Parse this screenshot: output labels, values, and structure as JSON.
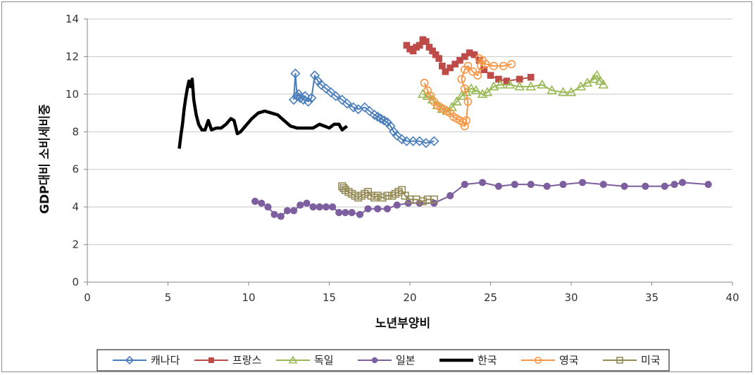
{
  "chart_data": {
    "type": "scatter",
    "xlabel": "노년부양비",
    "ylabel": "GDP대비 소비세비중",
    "xlim": [
      0,
      40
    ],
    "ylim": [
      0,
      14
    ],
    "xticks": [
      "0",
      "5",
      "10",
      "15",
      "20",
      "25",
      "30",
      "35",
      "40"
    ],
    "yticks": [
      "0",
      "2",
      "4",
      "6",
      "8",
      "10",
      "12",
      "14"
    ],
    "grid": "horizontal",
    "legend": "bottom",
    "series": [
      {
        "name": "캐나다",
        "color": "#4a7ebb",
        "marker": "diamond",
        "line": true,
        "points": [
          [
            12.8,
            9.7
          ],
          [
            12.9,
            11.1
          ],
          [
            13.0,
            9.9
          ],
          [
            13.1,
            10.0
          ],
          [
            13.2,
            9.8
          ],
          [
            13.4,
            9.7
          ],
          [
            13.5,
            9.9
          ],
          [
            13.7,
            9.6
          ],
          [
            13.9,
            9.8
          ],
          [
            14.1,
            11.0
          ],
          [
            14.3,
            10.7
          ],
          [
            14.5,
            10.5
          ],
          [
            14.8,
            10.3
          ],
          [
            15.1,
            10.1
          ],
          [
            15.4,
            9.9
          ],
          [
            15.8,
            9.7
          ],
          [
            16.1,
            9.5
          ],
          [
            16.5,
            9.3
          ],
          [
            16.8,
            9.2
          ],
          [
            17.2,
            9.3
          ],
          [
            17.5,
            9.1
          ],
          [
            17.8,
            8.9
          ],
          [
            18.0,
            8.8
          ],
          [
            18.2,
            8.7
          ],
          [
            18.4,
            8.6
          ],
          [
            18.6,
            8.5
          ],
          [
            18.8,
            8.3
          ],
          [
            19.0,
            8.0
          ],
          [
            19.2,
            7.8
          ],
          [
            19.5,
            7.6
          ],
          [
            19.8,
            7.5
          ],
          [
            20.2,
            7.5
          ],
          [
            20.6,
            7.5
          ],
          [
            21.0,
            7.4
          ],
          [
            21.5,
            7.5
          ]
        ]
      },
      {
        "name": "프랑스",
        "color": "#be4b48",
        "marker": "square",
        "line": true,
        "points": [
          [
            19.8,
            12.6
          ],
          [
            20.0,
            12.4
          ],
          [
            20.2,
            12.3
          ],
          [
            20.4,
            12.5
          ],
          [
            20.6,
            12.6
          ],
          [
            20.8,
            12.9
          ],
          [
            21.0,
            12.8
          ],
          [
            21.2,
            12.5
          ],
          [
            21.4,
            12.3
          ],
          [
            21.6,
            12.1
          ],
          [
            21.8,
            11.9
          ],
          [
            22.0,
            11.5
          ],
          [
            22.2,
            11.2
          ],
          [
            22.5,
            11.4
          ],
          [
            22.8,
            11.6
          ],
          [
            23.1,
            11.8
          ],
          [
            23.4,
            12.0
          ],
          [
            23.7,
            12.2
          ],
          [
            24.0,
            12.1
          ],
          [
            24.3,
            11.8
          ],
          [
            24.6,
            11.3
          ],
          [
            25.0,
            11.0
          ],
          [
            25.5,
            10.8
          ],
          [
            26.0,
            10.7
          ],
          [
            26.8,
            10.8
          ],
          [
            27.5,
            10.9
          ]
        ]
      },
      {
        "name": "독일",
        "color": "#98b954",
        "marker": "triangle",
        "line": true,
        "points": [
          [
            20.8,
            10.0
          ],
          [
            21.1,
            9.9
          ],
          [
            21.4,
            9.7
          ],
          [
            21.7,
            9.4
          ],
          [
            22.0,
            9.2
          ],
          [
            22.3,
            9.1
          ],
          [
            22.6,
            9.3
          ],
          [
            22.9,
            9.6
          ],
          [
            23.2,
            9.9
          ],
          [
            23.5,
            10.1
          ],
          [
            23.8,
            10.3
          ],
          [
            24.1,
            10.2
          ],
          [
            24.5,
            10.0
          ],
          [
            24.8,
            10.1
          ],
          [
            25.2,
            10.4
          ],
          [
            25.6,
            10.5
          ],
          [
            26.2,
            10.5
          ],
          [
            26.8,
            10.4
          ],
          [
            27.5,
            10.4
          ],
          [
            28.2,
            10.5
          ],
          [
            28.8,
            10.2
          ],
          [
            29.5,
            10.1
          ],
          [
            30.0,
            10.1
          ],
          [
            30.6,
            10.4
          ],
          [
            31.0,
            10.6
          ],
          [
            31.4,
            10.8
          ],
          [
            31.6,
            11.0
          ],
          [
            31.8,
            10.7
          ],
          [
            32.0,
            10.5
          ]
        ]
      },
      {
        "name": "일본",
        "color": "#7d5fa0",
        "marker": "circle",
        "line": true,
        "points": [
          [
            10.4,
            4.3
          ],
          [
            10.8,
            4.2
          ],
          [
            11.2,
            4.0
          ],
          [
            11.6,
            3.6
          ],
          [
            12.0,
            3.5
          ],
          [
            12.4,
            3.8
          ],
          [
            12.8,
            3.8
          ],
          [
            13.2,
            4.1
          ],
          [
            13.6,
            4.2
          ],
          [
            14.0,
            4.0
          ],
          [
            14.4,
            4.0
          ],
          [
            14.8,
            4.0
          ],
          [
            15.2,
            4.0
          ],
          [
            15.6,
            3.7
          ],
          [
            16.0,
            3.7
          ],
          [
            16.4,
            3.7
          ],
          [
            16.9,
            3.6
          ],
          [
            17.4,
            3.9
          ],
          [
            18.0,
            3.9
          ],
          [
            18.6,
            3.9
          ],
          [
            19.2,
            4.1
          ],
          [
            19.9,
            4.2
          ],
          [
            20.6,
            4.2
          ],
          [
            21.5,
            4.2
          ],
          [
            22.5,
            4.6
          ],
          [
            23.4,
            5.2
          ],
          [
            24.5,
            5.3
          ],
          [
            25.5,
            5.1
          ],
          [
            26.5,
            5.2
          ],
          [
            27.5,
            5.2
          ],
          [
            28.5,
            5.1
          ],
          [
            29.5,
            5.2
          ],
          [
            30.7,
            5.3
          ],
          [
            32.0,
            5.2
          ],
          [
            33.3,
            5.1
          ],
          [
            34.6,
            5.1
          ],
          [
            35.8,
            5.1
          ],
          [
            36.4,
            5.2
          ],
          [
            36.9,
            5.3
          ],
          [
            38.5,
            5.2
          ]
        ]
      },
      {
        "name": "한국",
        "color": "#000000",
        "marker": "none",
        "line": true,
        "points": [
          [
            5.7,
            7.1
          ],
          [
            5.8,
            7.8
          ],
          [
            5.9,
            8.4
          ],
          [
            6.0,
            9.2
          ],
          [
            6.1,
            9.8
          ],
          [
            6.2,
            10.3
          ],
          [
            6.3,
            10.7
          ],
          [
            6.4,
            10.4
          ],
          [
            6.5,
            10.8
          ],
          [
            6.6,
            9.7
          ],
          [
            6.75,
            8.9
          ],
          [
            6.9,
            8.4
          ],
          [
            7.1,
            8.1
          ],
          [
            7.3,
            8.1
          ],
          [
            7.5,
            8.6
          ],
          [
            7.7,
            8.1
          ],
          [
            8.0,
            8.2
          ],
          [
            8.3,
            8.2
          ],
          [
            8.6,
            8.4
          ],
          [
            8.9,
            8.7
          ],
          [
            9.1,
            8.6
          ],
          [
            9.3,
            7.9
          ],
          [
            9.5,
            8.0
          ],
          [
            9.8,
            8.3
          ],
          [
            10.2,
            8.7
          ],
          [
            10.6,
            9.0
          ],
          [
            11.0,
            9.1
          ],
          [
            11.4,
            9.0
          ],
          [
            11.8,
            8.9
          ],
          [
            12.2,
            8.6
          ],
          [
            12.6,
            8.3
          ],
          [
            13.0,
            8.2
          ],
          [
            13.5,
            8.2
          ],
          [
            14.0,
            8.2
          ],
          [
            14.4,
            8.4
          ],
          [
            14.7,
            8.3
          ],
          [
            15.0,
            8.2
          ],
          [
            15.3,
            8.4
          ],
          [
            15.6,
            8.4
          ],
          [
            15.8,
            8.1
          ],
          [
            16.1,
            8.3
          ]
        ]
      },
      {
        "name": "영국",
        "color": "#f79646",
        "marker": "circle-open",
        "line": true,
        "points": [
          [
            20.9,
            10.6
          ],
          [
            21.1,
            10.2
          ],
          [
            21.3,
            9.9
          ],
          [
            21.5,
            9.6
          ],
          [
            21.7,
            9.4
          ],
          [
            21.9,
            9.3
          ],
          [
            22.1,
            9.2
          ],
          [
            22.3,
            9.1
          ],
          [
            22.5,
            9.0
          ],
          [
            22.7,
            8.8
          ],
          [
            22.9,
            8.7
          ],
          [
            23.1,
            8.6
          ],
          [
            23.3,
            8.5
          ],
          [
            23.4,
            8.3
          ],
          [
            23.5,
            8.6
          ],
          [
            23.6,
            9.6
          ],
          [
            23.4,
            10.3
          ],
          [
            23.2,
            10.8
          ],
          [
            23.4,
            11.3
          ],
          [
            23.6,
            11.5
          ],
          [
            23.9,
            11.2
          ],
          [
            24.2,
            11.0
          ],
          [
            24.4,
            11.5
          ],
          [
            24.5,
            11.8
          ],
          [
            24.3,
            11.9
          ],
          [
            24.7,
            11.6
          ],
          [
            25.2,
            11.5
          ],
          [
            25.8,
            11.5
          ],
          [
            26.3,
            11.6
          ]
        ]
      },
      {
        "name": "미국",
        "color": "#948a54",
        "marker": "square-open",
        "line": true,
        "points": [
          [
            15.8,
            5.1
          ],
          [
            15.9,
            5.0
          ],
          [
            16.0,
            4.9
          ],
          [
            16.2,
            4.8
          ],
          [
            16.4,
            4.7
          ],
          [
            16.6,
            4.6
          ],
          [
            16.8,
            4.5
          ],
          [
            17.0,
            4.6
          ],
          [
            17.2,
            4.7
          ],
          [
            17.4,
            4.8
          ],
          [
            17.6,
            4.6
          ],
          [
            17.8,
            4.5
          ],
          [
            18.0,
            4.6
          ],
          [
            18.3,
            4.5
          ],
          [
            18.6,
            4.6
          ],
          [
            18.9,
            4.6
          ],
          [
            19.1,
            4.7
          ],
          [
            19.3,
            4.8
          ],
          [
            19.5,
            4.9
          ],
          [
            19.7,
            4.6
          ],
          [
            20.0,
            4.4
          ],
          [
            20.4,
            4.4
          ],
          [
            20.8,
            4.3
          ],
          [
            21.1,
            4.4
          ],
          [
            21.5,
            4.4
          ]
        ]
      }
    ]
  }
}
